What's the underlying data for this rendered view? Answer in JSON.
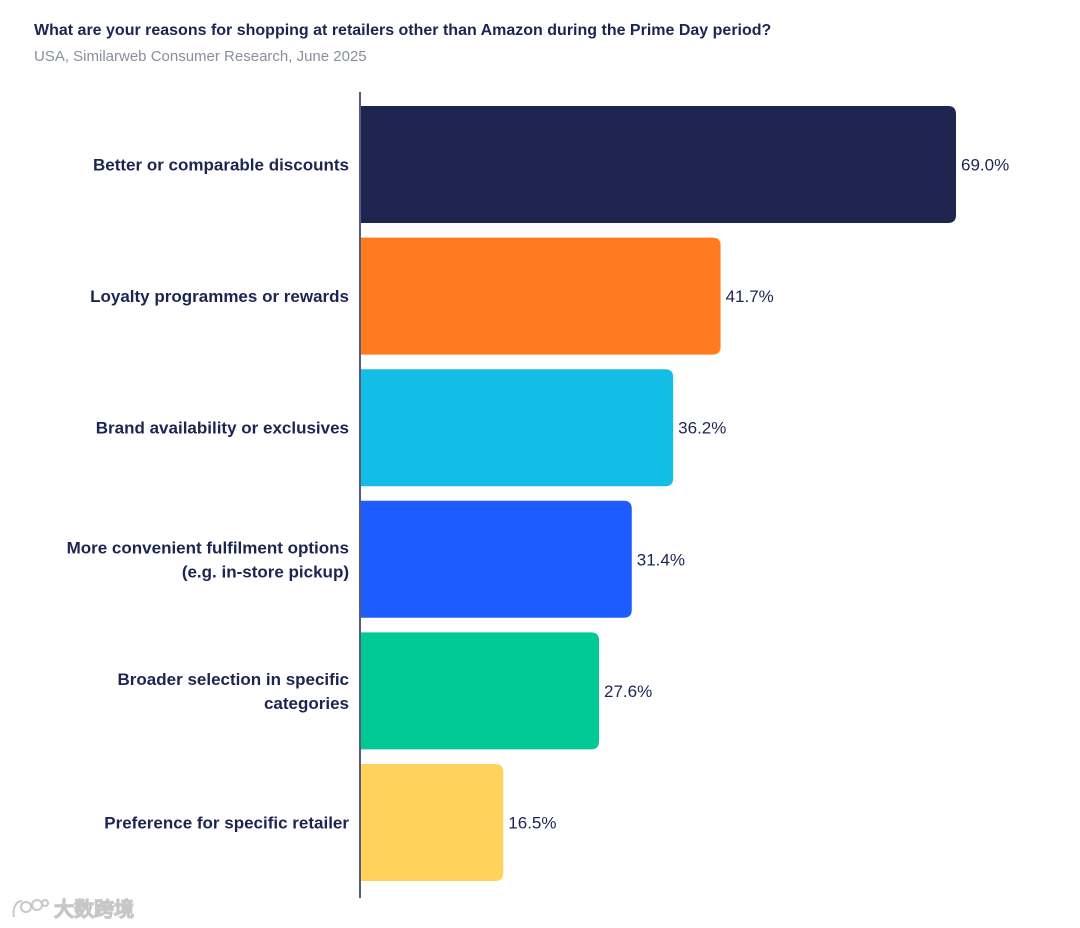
{
  "chart_data": {
    "type": "bar",
    "orientation": "horizontal",
    "title": "What are your reasons for shopping at retailers other than Amazon during the Prime Day period?",
    "subtitle": "USA, Similarweb Consumer Research, June 2025",
    "xlabel": "",
    "ylabel": "",
    "xlim": [
      0,
      69
    ],
    "categories": [
      [
        "Better or comparable discounts"
      ],
      [
        "Loyalty programmes or rewards"
      ],
      [
        "Brand availability or exclusives"
      ],
      [
        "More convenient fulfilment options",
        "(e.g. in-store pickup)"
      ],
      [
        "Broader selection in specific",
        "categories"
      ],
      [
        "Preference for specific retailer"
      ]
    ],
    "values": [
      69.0,
      41.7,
      36.2,
      31.4,
      27.6,
      16.5
    ],
    "value_labels": [
      "69.0%",
      "41.7%",
      "36.2%",
      "31.4%",
      "27.6%",
      "16.5%"
    ],
    "colors": [
      "#1e2650",
      "#ff7b1d",
      "#12bee6",
      "#1d5cff",
      "#00c996",
      "#ffd35c"
    ],
    "grid": false
  },
  "watermark": {
    "text": "大数跨境",
    "icon": "logo-icon"
  }
}
